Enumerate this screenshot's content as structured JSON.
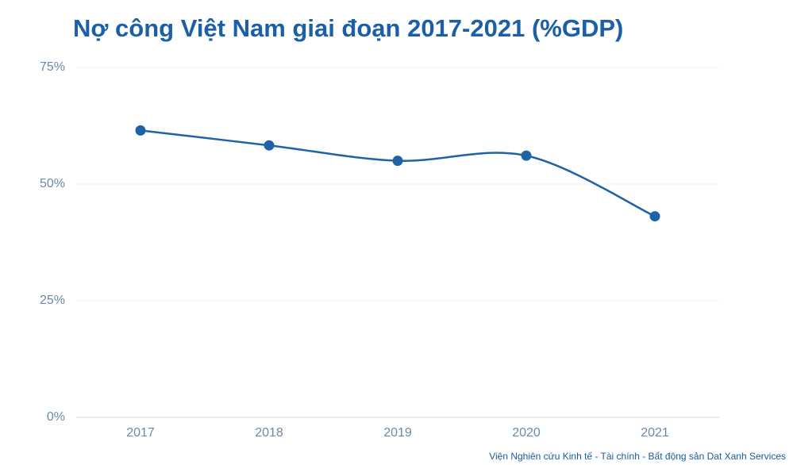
{
  "chart_data": {
    "type": "line",
    "title": "Nợ công Việt Nam giai đoạn 2017-2021 (%GDP)",
    "categories": [
      "2017",
      "2018",
      "2019",
      "2020",
      "2021"
    ],
    "series": [
      {
        "name": "Nợ công",
        "color": "#1f63a6",
        "values": [
          61.5,
          58.3,
          55,
          56.1,
          43.1
        ]
      }
    ],
    "ylim": [
      0,
      75
    ],
    "yticks": [
      {
        "value": 0,
        "label": "0%"
      },
      {
        "value": 25,
        "label": "25%"
      },
      {
        "value": 50,
        "label": "50%"
      },
      {
        "value": 75,
        "label": "75%"
      }
    ],
    "grid": true,
    "smooth": true,
    "source": "Viện Nghiên cứu Kinh tế - Tài chính - Bất động sản Dat Xanh Services"
  }
}
